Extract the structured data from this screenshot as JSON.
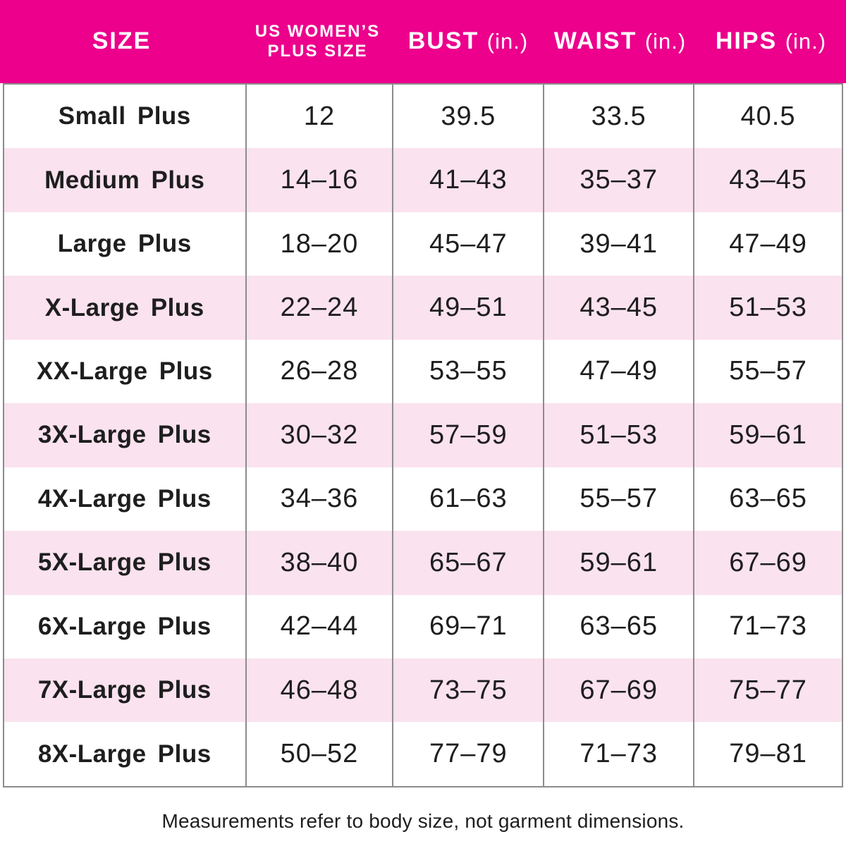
{
  "colors": {
    "header_bg": "#EC008C",
    "header_text": "#FFFFFF",
    "alt_row_bg": "#FAE2EE",
    "text": "#1E1E1E",
    "grid_line": "#8C8C8C"
  },
  "header": {
    "size_label": "SIZE",
    "plus_size_line1": "US WOMEN’S",
    "plus_size_line2": "PLUS SIZE",
    "bust_label": "BUST",
    "bust_unit": "(in.)",
    "waist_label": "WAIST",
    "waist_unit": "(in.)",
    "hips_label": "HIPS",
    "hips_unit": "(in.)"
  },
  "footer": {
    "note": "Measurements refer to body size, not garment dimensions."
  },
  "chart_data": {
    "type": "table",
    "title": "US Women's Plus Size Chart",
    "columns": [
      "SIZE",
      "US WOMEN’S PLUS SIZE",
      "BUST (in.)",
      "WAIST (in.)",
      "HIPS (in.)"
    ],
    "rows": [
      [
        "Small Plus",
        "12",
        "39.5",
        "33.5",
        "40.5"
      ],
      [
        "Medium Plus",
        "14–16",
        "41–43",
        "35–37",
        "43–45"
      ],
      [
        "Large Plus",
        "18–20",
        "45–47",
        "39–41",
        "47–49"
      ],
      [
        "X-Large Plus",
        "22–24",
        "49–51",
        "43–45",
        "51–53"
      ],
      [
        "XX-Large Plus",
        "26–28",
        "53–55",
        "47–49",
        "55–57"
      ],
      [
        "3X-Large Plus",
        "30–32",
        "57–59",
        "51–53",
        "59–61"
      ],
      [
        "4X-Large Plus",
        "34–36",
        "61–63",
        "55–57",
        "63–65"
      ],
      [
        "5X-Large Plus",
        "38–40",
        "65–67",
        "59–61",
        "67–69"
      ],
      [
        "6X-Large Plus",
        "42–44",
        "69–71",
        "63–65",
        "71–73"
      ],
      [
        "7X-Large Plus",
        "46–48",
        "73–75",
        "67–69",
        "75–77"
      ],
      [
        "8X-Large Plus",
        "50–52",
        "77–79",
        "71–73",
        "79–81"
      ]
    ],
    "footnote": "Measurements refer to body size, not garment dimensions."
  }
}
